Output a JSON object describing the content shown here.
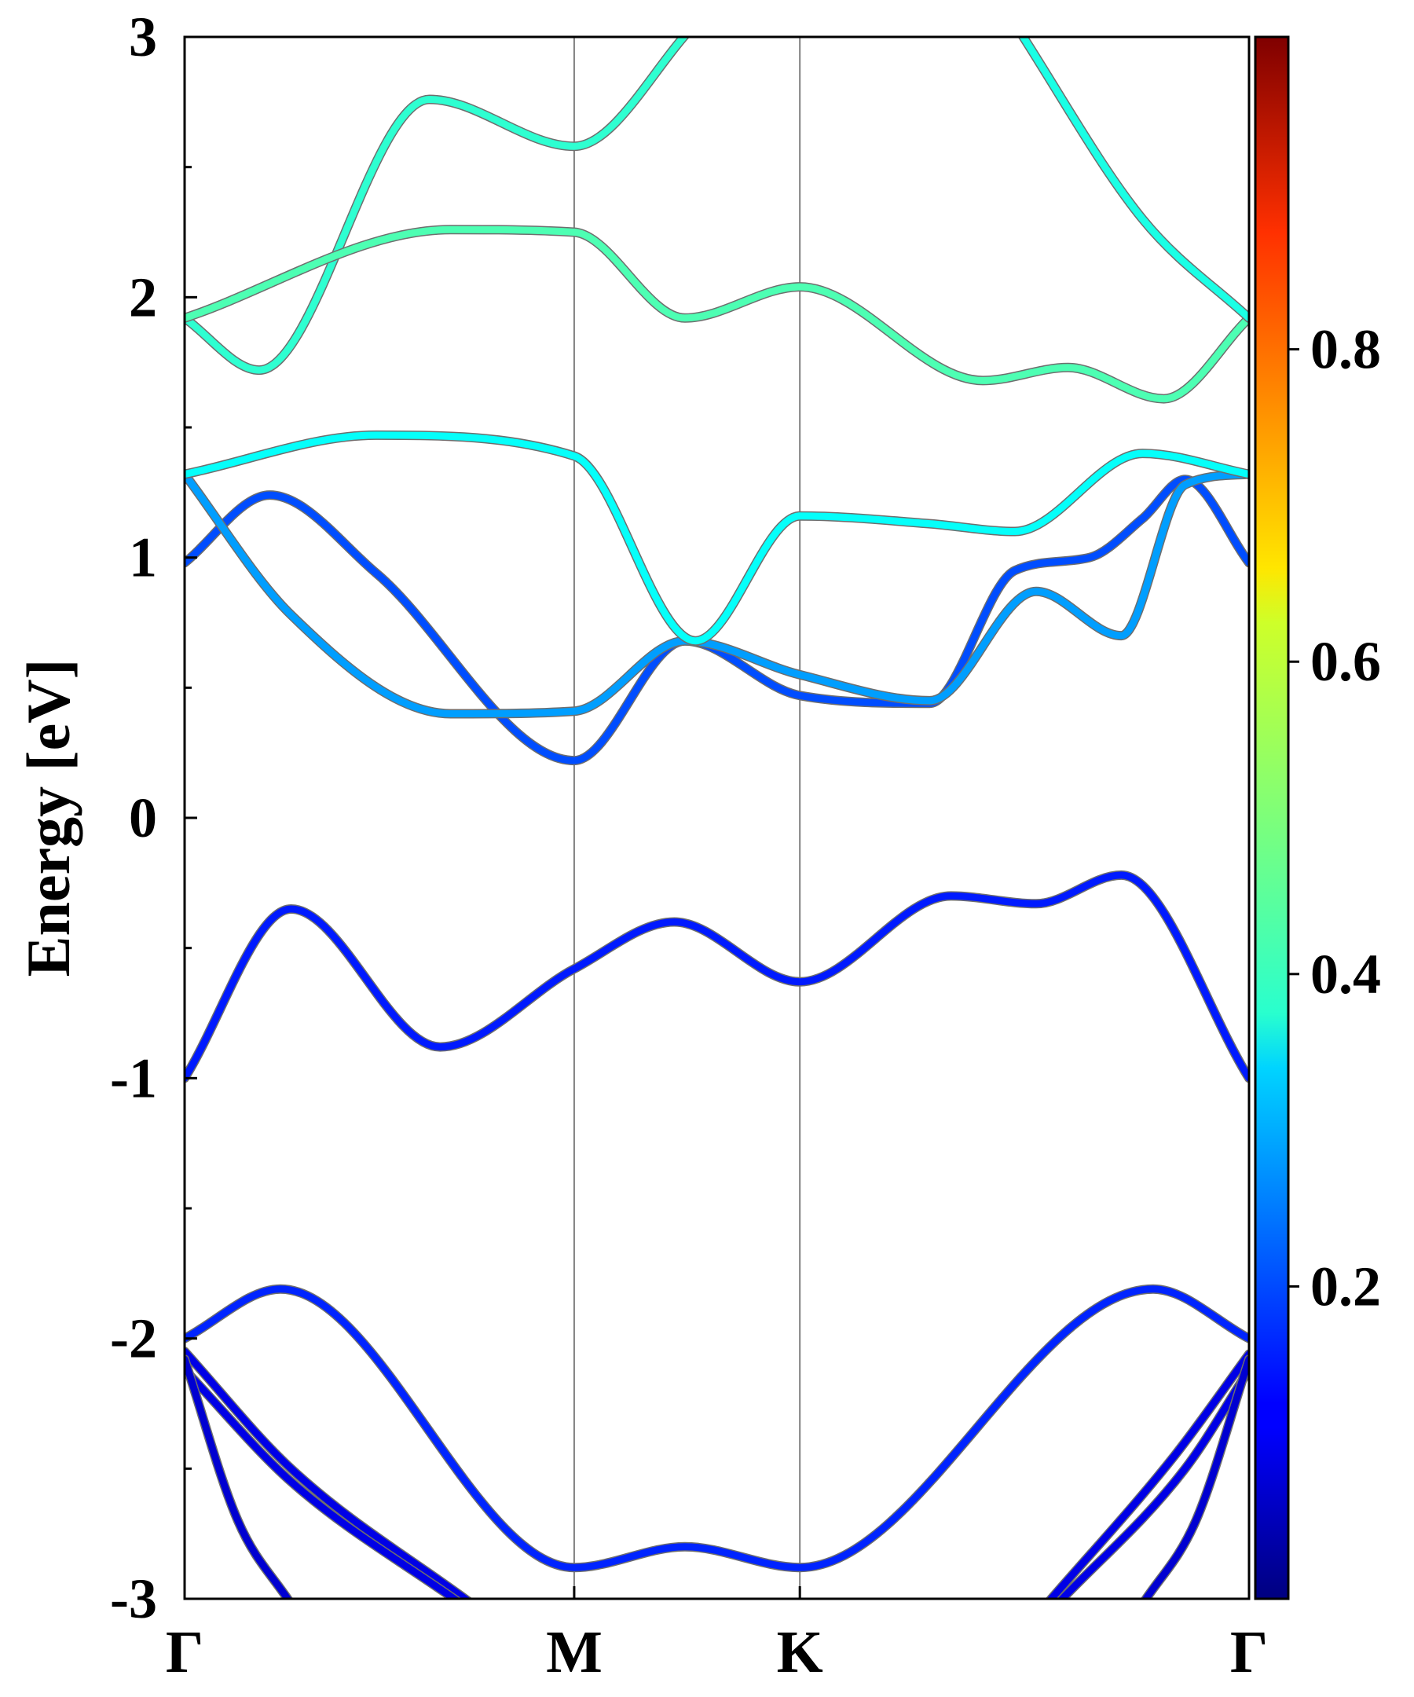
{
  "chart_data": {
    "type": "line",
    "ylabel": "Energy [eV]",
    "ylim": [
      -3,
      3
    ],
    "yticks": [
      -3,
      -2,
      -1,
      0,
      1,
      2,
      3
    ],
    "kpath": {
      "labels": [
        "Γ",
        "M",
        "K",
        "Γ"
      ],
      "positions": [
        0,
        0.366,
        0.578,
        1.0
      ]
    },
    "colorbar": {
      "colormap": "jet",
      "range": [
        0,
        1
      ],
      "ticks": [
        0.2,
        0.4,
        0.6,
        0.8
      ]
    },
    "bands": [
      {
        "name": "",
        "weight": 0.15,
        "points": [
          [
            0,
            -1.0
          ],
          [
            0.1,
            -0.35
          ],
          [
            0.24,
            -0.88
          ],
          [
            0.366,
            -0.58
          ],
          [
            0.46,
            -0.4
          ],
          [
            0.578,
            -0.63
          ],
          [
            0.72,
            -0.3
          ],
          [
            0.8,
            -0.33
          ],
          [
            0.88,
            -0.22
          ],
          [
            1.0,
            -1.0
          ]
        ]
      },
      {
        "name": "",
        "weight": 0.2,
        "points": [
          [
            0,
            0.98
          ],
          [
            0.08,
            1.24
          ],
          [
            0.18,
            0.94
          ],
          [
            0.366,
            0.22
          ],
          [
            0.47,
            0.68
          ],
          [
            0.578,
            0.47
          ],
          [
            0.7,
            0.44
          ],
          [
            0.78,
            0.95
          ],
          [
            0.85,
            1.0
          ],
          [
            0.9,
            1.15
          ],
          [
            0.94,
            1.3
          ],
          [
            1.0,
            0.98
          ]
        ]
      },
      {
        "name": "",
        "weight": 0.28,
        "points": [
          [
            0,
            1.32
          ],
          [
            0.1,
            0.78
          ],
          [
            0.25,
            0.4
          ],
          [
            0.366,
            0.41
          ],
          [
            0.47,
            0.68
          ],
          [
            0.578,
            0.55
          ],
          [
            0.7,
            0.45
          ],
          [
            0.8,
            0.87
          ],
          [
            0.88,
            0.7
          ],
          [
            0.94,
            1.28
          ],
          [
            1.0,
            1.32
          ]
        ]
      },
      {
        "name": "",
        "weight": 0.38,
        "points": [
          [
            0,
            1.32
          ],
          [
            0.18,
            1.47
          ],
          [
            0.366,
            1.39
          ],
          [
            0.48,
            0.68
          ],
          [
            0.578,
            1.16
          ],
          [
            0.7,
            1.13
          ],
          [
            0.78,
            1.1
          ],
          [
            0.9,
            1.4
          ],
          [
            1.0,
            1.32
          ]
        ]
      },
      {
        "name": "",
        "weight": 0.42,
        "points": [
          [
            0,
            1.92
          ],
          [
            0.07,
            1.72
          ],
          [
            0.23,
            2.76
          ],
          [
            0.366,
            2.58
          ],
          [
            0.48,
            3.05
          ]
        ]
      },
      {
        "name": "",
        "weight": 0.45,
        "points": [
          [
            0,
            1.92
          ],
          [
            0.25,
            2.26
          ],
          [
            0.366,
            2.25
          ],
          [
            0.47,
            1.92
          ],
          [
            0.578,
            2.04
          ],
          [
            0.75,
            1.68
          ],
          [
            0.83,
            1.73
          ],
          [
            0.92,
            1.61
          ],
          [
            1.0,
            1.92
          ]
        ]
      },
      {
        "name": "",
        "weight": 0.4,
        "points": [
          [
            0.78,
            3.05
          ],
          [
            0.9,
            2.3
          ],
          [
            1.0,
            1.92
          ]
        ]
      },
      {
        "name": "",
        "weight": 0.16,
        "points": [
          [
            0,
            -2.0
          ],
          [
            0.09,
            -1.81
          ],
          [
            0.366,
            -2.88
          ],
          [
            0.47,
            -2.8
          ],
          [
            0.578,
            -2.88
          ],
          [
            0.91,
            -1.81
          ],
          [
            1.0,
            -2.0
          ]
        ]
      },
      {
        "name": "",
        "weight": 0.1,
        "points": [
          [
            0,
            -2.05
          ],
          [
            0.1,
            -2.5
          ],
          [
            0.27,
            -3.02
          ]
        ]
      },
      {
        "name": "",
        "weight": 0.1,
        "points": [
          [
            0,
            -2.12
          ],
          [
            0.1,
            -2.55
          ],
          [
            0.26,
            -3.02
          ]
        ]
      },
      {
        "name": "",
        "weight": 0.08,
        "points": [
          [
            0,
            -2.08
          ],
          [
            0.05,
            -2.7
          ],
          [
            0.1,
            -3.02
          ]
        ]
      },
      {
        "name": "",
        "weight": 0.1,
        "points": [
          [
            0.81,
            -3.02
          ],
          [
            0.93,
            -2.45
          ],
          [
            1.0,
            -2.06
          ]
        ]
      },
      {
        "name": "",
        "weight": 0.1,
        "points": [
          [
            0.82,
            -3.02
          ],
          [
            0.94,
            -2.5
          ],
          [
            1.0,
            -2.12
          ]
        ]
      },
      {
        "name": "",
        "weight": 0.08,
        "points": [
          [
            0.9,
            -3.02
          ],
          [
            0.95,
            -2.7
          ],
          [
            1.0,
            -2.08
          ]
        ]
      }
    ]
  }
}
